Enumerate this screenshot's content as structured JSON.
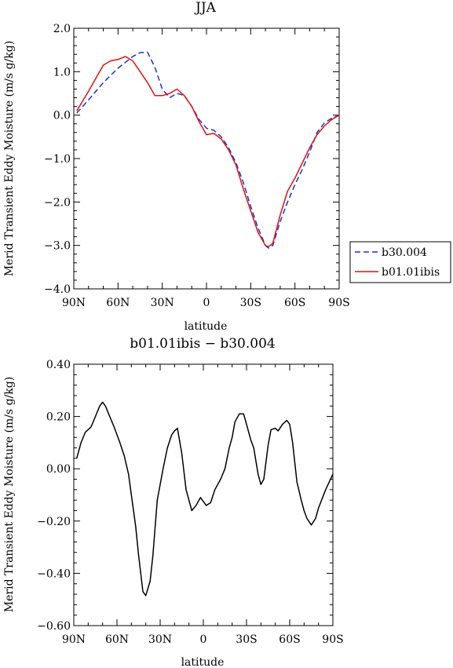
{
  "chart_data": [
    {
      "type": "line",
      "title": "JJA",
      "xlabel": "latitude",
      "ylabel": "Merid Transient Eddy Moisture (m/s g/kg)",
      "x_axis": {
        "range": [
          90,
          -90
        ],
        "ticks": [
          90,
          60,
          30,
          0,
          -30,
          -60,
          -90
        ],
        "tick_labels": [
          "90N",
          "60N",
          "30N",
          "0",
          "30S",
          "60S",
          "90S"
        ]
      },
      "y_axis": {
        "range": [
          -4.0,
          2.0
        ],
        "ticks": [
          2.0,
          1.0,
          0.0,
          -1.0,
          -2.0,
          -3.0,
          -4.0
        ],
        "tick_labels": [
          "2.0",
          "1.0",
          "0.0",
          "−1.0",
          "−2.0",
          "−3.0",
          "−4.0"
        ]
      },
      "legend": {
        "position": "right"
      },
      "series": [
        {
          "name": "b30.004",
          "color": "#1f2fd6",
          "style": "dashed",
          "x": [
            88,
            80,
            70,
            60,
            50,
            45,
            40,
            35,
            30,
            25,
            20,
            15,
            10,
            5,
            0,
            -5,
            -10,
            -15,
            -20,
            -25,
            -30,
            -35,
            -40,
            -42,
            -45,
            -50,
            -55,
            -60,
            -65,
            -70,
            -75,
            -80,
            -85,
            -90
          ],
          "y": [
            0.05,
            0.35,
            0.75,
            1.08,
            1.35,
            1.44,
            1.45,
            1.1,
            0.6,
            0.4,
            0.5,
            0.45,
            0.2,
            -0.1,
            -0.3,
            -0.35,
            -0.5,
            -0.75,
            -1.1,
            -1.55,
            -2.1,
            -2.6,
            -3.0,
            -3.06,
            -3.0,
            -2.45,
            -2.0,
            -1.6,
            -1.25,
            -0.85,
            -0.4,
            -0.18,
            -0.07,
            0.0
          ]
        },
        {
          "name": "b01.01ibis",
          "color": "#e01010",
          "style": "solid",
          "x": [
            88,
            80,
            75,
            70,
            65,
            60,
            55,
            50,
            45,
            40,
            35,
            30,
            25,
            20,
            15,
            10,
            5,
            0,
            -5,
            -10,
            -15,
            -20,
            -25,
            -30,
            -35,
            -40,
            -42,
            -45,
            -50,
            -55,
            -60,
            -65,
            -70,
            -75,
            -80,
            -85,
            -90
          ],
          "y": [
            0.1,
            0.55,
            0.85,
            1.15,
            1.25,
            1.28,
            1.35,
            1.25,
            1.0,
            0.75,
            0.45,
            0.45,
            0.5,
            0.6,
            0.45,
            0.2,
            -0.15,
            -0.45,
            -0.42,
            -0.55,
            -0.8,
            -1.15,
            -1.7,
            -2.2,
            -2.7,
            -3.0,
            -3.03,
            -2.95,
            -2.3,
            -1.75,
            -1.45,
            -1.1,
            -0.75,
            -0.45,
            -0.25,
            -0.1,
            0.0
          ]
        }
      ]
    },
    {
      "type": "line",
      "title": "b01.01ibis − b30.004",
      "xlabel": "latitude",
      "ylabel": "Merid Transient Eddy Moisture (m/s g/kg)",
      "x_axis": {
        "range": [
          90,
          -90
        ],
        "ticks": [
          90,
          60,
          30,
          0,
          -30,
          -60,
          -90
        ],
        "tick_labels": [
          "90N",
          "60N",
          "30N",
          "0",
          "30S",
          "60S",
          "90S"
        ]
      },
      "y_axis": {
        "range": [
          -0.6,
          0.4
        ],
        "ticks": [
          0.4,
          0.2,
          0.0,
          -0.2,
          -0.4,
          -0.6
        ],
        "tick_labels": [
          "0.40",
          "0.20",
          "0.00",
          "−0.20",
          "−0.40",
          "−0.60"
        ]
      },
      "series": [
        {
          "color": "#000000",
          "style": "solid",
          "x": [
            88,
            85,
            82,
            78,
            75,
            72,
            70,
            68,
            65,
            62,
            58,
            55,
            52,
            50,
            47,
            45,
            42,
            40,
            37,
            35,
            32,
            28,
            25,
            22,
            20,
            18,
            15,
            12,
            8,
            5,
            2,
            -2,
            -5,
            -8,
            -12,
            -15,
            -18,
            -20,
            -22,
            -25,
            -28,
            -30,
            -33,
            -35,
            -38,
            -40,
            -42,
            -45,
            -47,
            -50,
            -52,
            -55,
            -58,
            -60,
            -62,
            -65,
            -68,
            -70,
            -72,
            -75,
            -78,
            -80,
            -85,
            -90
          ],
          "y": [
            0.04,
            0.1,
            0.14,
            0.16,
            0.2,
            0.24,
            0.255,
            0.24,
            0.2,
            0.16,
            0.1,
            0.05,
            -0.02,
            -0.1,
            -0.22,
            -0.33,
            -0.47,
            -0.485,
            -0.43,
            -0.33,
            -0.12,
            0.0,
            0.08,
            0.13,
            0.145,
            0.155,
            0.06,
            -0.08,
            -0.16,
            -0.14,
            -0.11,
            -0.14,
            -0.13,
            -0.08,
            -0.04,
            0.0,
            0.08,
            0.12,
            0.18,
            0.21,
            0.21,
            0.17,
            0.11,
            0.08,
            -0.02,
            -0.06,
            -0.04,
            0.09,
            0.15,
            0.155,
            0.145,
            0.17,
            0.185,
            0.17,
            0.1,
            -0.05,
            -0.12,
            -0.16,
            -0.19,
            -0.215,
            -0.19,
            -0.15,
            -0.08,
            -0.02
          ]
        }
      ]
    }
  ]
}
